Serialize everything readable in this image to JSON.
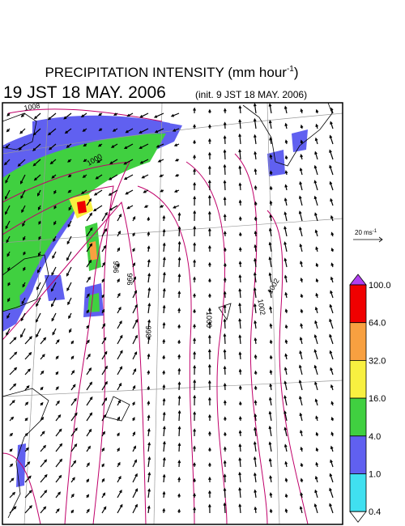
{
  "header": {
    "title": "PRECIPITATION INTENSITY (mm hour",
    "title_sup": "-1",
    "title_end": ")",
    "valid_time": "19 JST 18 MAY. 2006",
    "init_time": "(init. 9 JST 18 MAY. 2006)"
  },
  "wind_scale": {
    "label": "20 ms",
    "label_sup": "-1"
  },
  "colorbar": {
    "levels": [
      "100.0",
      "64.0",
      "32.0",
      "16.0",
      "4.0",
      "1.0",
      "0.4"
    ],
    "colors": [
      "#b040f0",
      "#f00000",
      "#f8a040",
      "#f8f040",
      "#40d040",
      "#6060f0",
      "#40e0f0",
      "#ffffff"
    ]
  },
  "contour_labels": [
    "1008",
    "1000",
    "996",
    "996",
    "998",
    "1000",
    "1002",
    "1002"
  ]
}
